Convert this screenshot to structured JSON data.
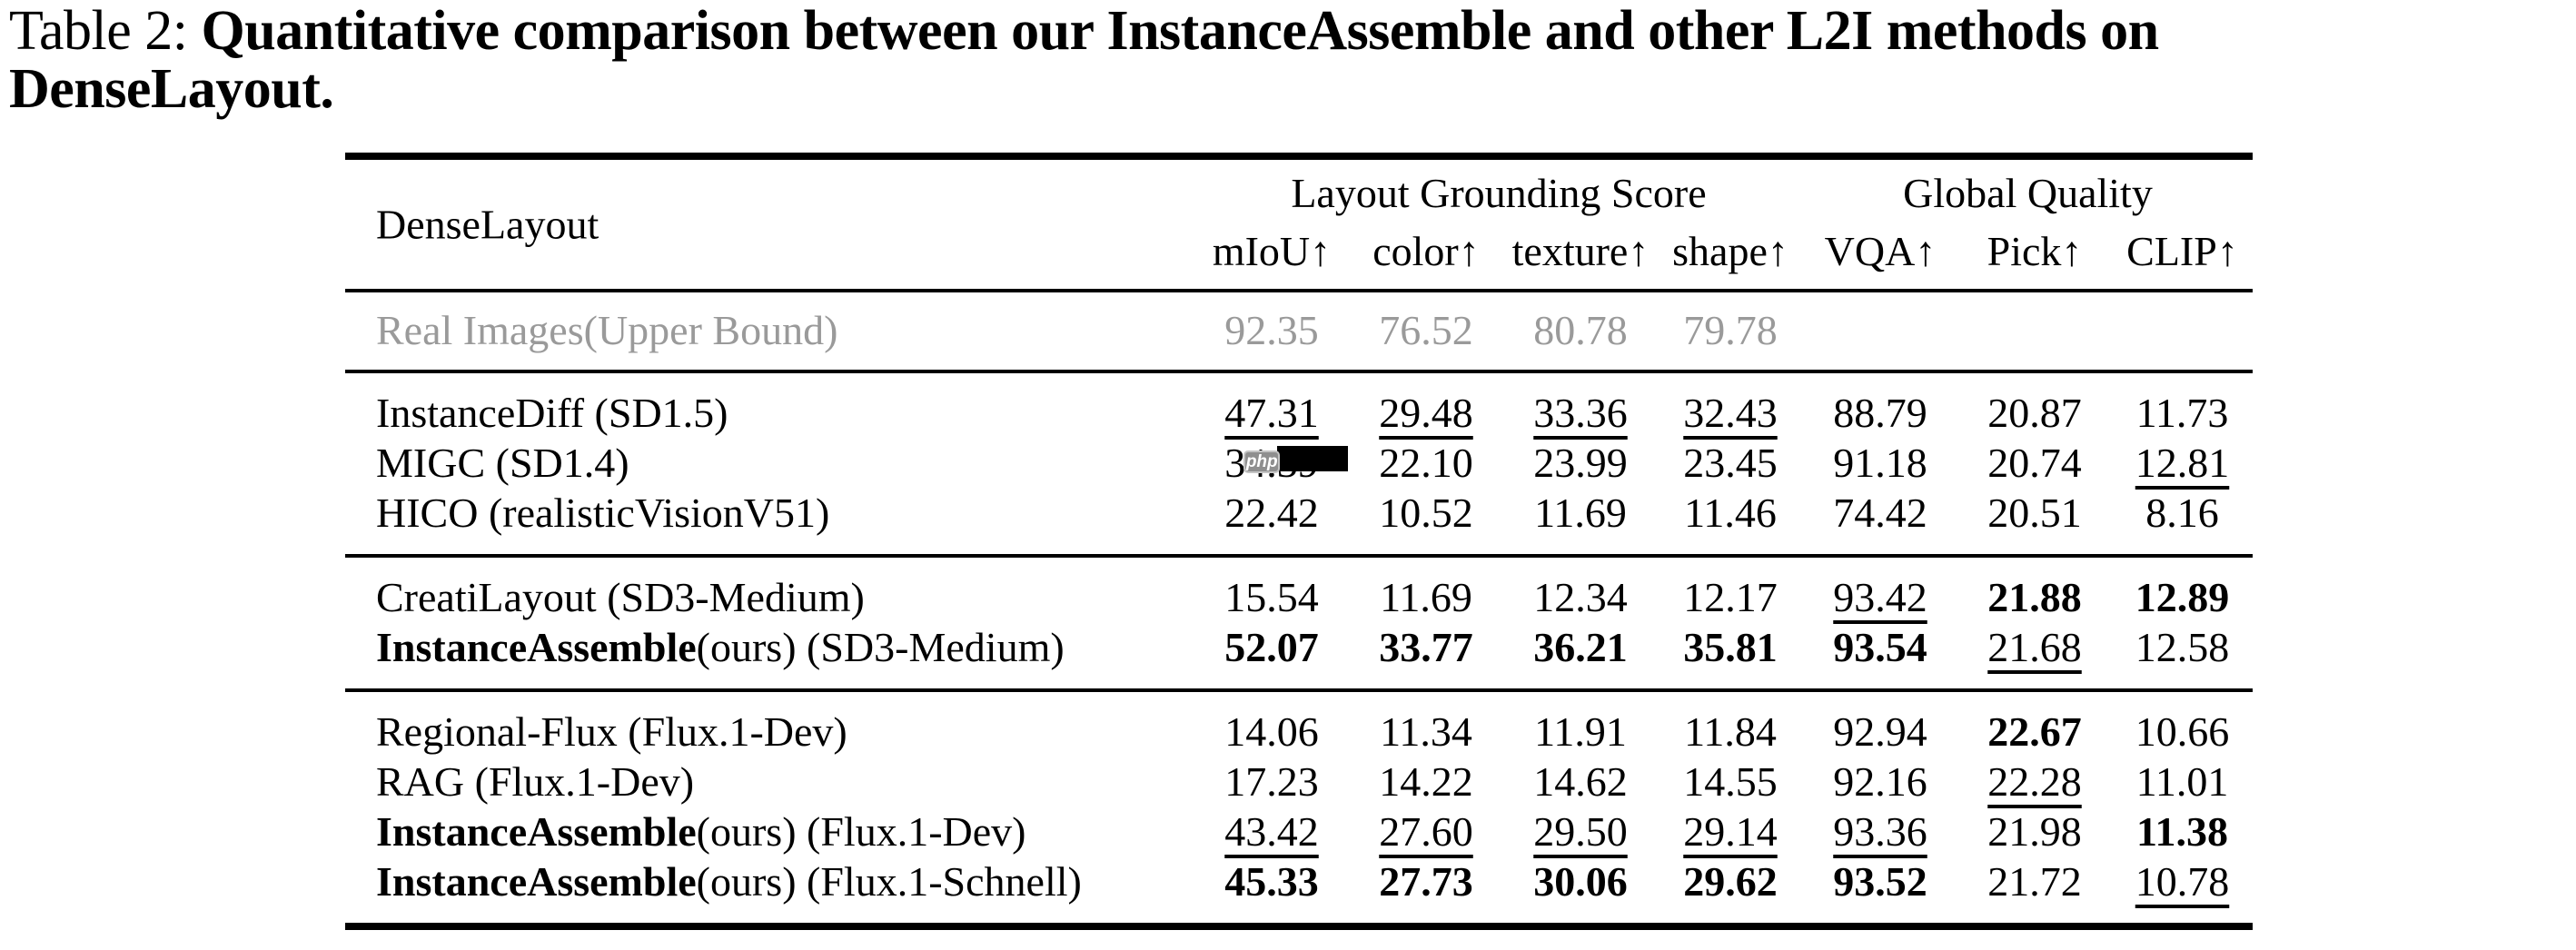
{
  "caption": {
    "label": "Table 2:",
    "title_line1": "Quantitative comparison between our InstanceAssemble and other L2I methods on",
    "title_line2": "DenseLayout."
  },
  "watermark": {
    "badge_text": "php"
  },
  "colors": {
    "text": "#000000",
    "muted_row": "#9a9a9a",
    "watermark_badge": "#8f8f8f"
  },
  "table": {
    "corner_label": "DenseLayout",
    "column_groups": [
      {
        "label": "Layout Grounding Score",
        "span": 4
      },
      {
        "label": "Global Quality",
        "span": 3
      }
    ],
    "columns": [
      "mIoU↑",
      "color↑",
      "texture↑",
      "shape↑",
      "VQA↑",
      "Pick↑",
      "CLIP↑"
    ],
    "row_groups": [
      {
        "rows": [
          {
            "method": {
              "bold": "",
              "text": "Real Images(Upper Bound)"
            },
            "gray": true,
            "cells": [
              {
                "v": "92.35"
              },
              {
                "v": "76.52"
              },
              {
                "v": "80.78"
              },
              {
                "v": "79.78"
              },
              {
                "v": ""
              },
              {
                "v": ""
              },
              {
                "v": ""
              }
            ]
          }
        ]
      },
      {
        "rows": [
          {
            "method": {
              "bold": "",
              "text": "InstanceDiff (SD1.5)"
            },
            "cells": [
              {
                "v": "47.31",
                "s": "underline"
              },
              {
                "v": "29.48",
                "s": "underline"
              },
              {
                "v": "33.36",
                "s": "underline"
              },
              {
                "v": "32.43",
                "s": "underline"
              },
              {
                "v": "88.79"
              },
              {
                "v": "20.87"
              },
              {
                "v": "11.73"
              }
            ]
          },
          {
            "method": {
              "bold": "",
              "text": "MIGC (SD1.4)"
            },
            "cells": [
              {
                "v": "34.39",
                "glitch": true
              },
              {
                "v": "22.10"
              },
              {
                "v": "23.99"
              },
              {
                "v": "23.45"
              },
              {
                "v": "91.18"
              },
              {
                "v": "20.74"
              },
              {
                "v": "12.81",
                "s": "underline"
              }
            ]
          },
          {
            "method": {
              "bold": "",
              "text": "HICO (realisticVisionV51)"
            },
            "cells": [
              {
                "v": "22.42"
              },
              {
                "v": "10.52"
              },
              {
                "v": "11.69"
              },
              {
                "v": "11.46"
              },
              {
                "v": "74.42"
              },
              {
                "v": "20.51"
              },
              {
                "v": "8.16"
              }
            ]
          }
        ]
      },
      {
        "rows": [
          {
            "method": {
              "bold": "",
              "text": "CreatiLayout (SD3-Medium)"
            },
            "cells": [
              {
                "v": "15.54"
              },
              {
                "v": "11.69"
              },
              {
                "v": "12.34"
              },
              {
                "v": "12.17"
              },
              {
                "v": "93.42",
                "s": "underline"
              },
              {
                "v": "21.88",
                "s": "bold"
              },
              {
                "v": "12.89",
                "s": "bold"
              }
            ]
          },
          {
            "method": {
              "bold": "InstanceAssemble",
              "text": "(ours) (SD3-Medium)"
            },
            "cells": [
              {
                "v": "52.07",
                "s": "bold"
              },
              {
                "v": "33.77",
                "s": "bold"
              },
              {
                "v": "36.21",
                "s": "bold"
              },
              {
                "v": "35.81",
                "s": "bold"
              },
              {
                "v": "93.54",
                "s": "bold"
              },
              {
                "v": "21.68",
                "s": "underline"
              },
              {
                "v": "12.58"
              }
            ]
          }
        ]
      },
      {
        "rows": [
          {
            "method": {
              "bold": "",
              "text": "Regional-Flux (Flux.1-Dev)"
            },
            "cells": [
              {
                "v": "14.06"
              },
              {
                "v": "11.34"
              },
              {
                "v": "11.91"
              },
              {
                "v": "11.84"
              },
              {
                "v": "92.94"
              },
              {
                "v": "22.67",
                "s": "bold"
              },
              {
                "v": "10.66"
              }
            ]
          },
          {
            "method": {
              "bold": "",
              "text": "RAG (Flux.1-Dev)"
            },
            "cells": [
              {
                "v": "17.23"
              },
              {
                "v": "14.22"
              },
              {
                "v": "14.62"
              },
              {
                "v": "14.55"
              },
              {
                "v": "92.16"
              },
              {
                "v": "22.28",
                "s": "underline"
              },
              {
                "v": "11.01"
              }
            ]
          },
          {
            "method": {
              "bold": "InstanceAssemble",
              "text": "(ours) (Flux.1-Dev)"
            },
            "cells": [
              {
                "v": "43.42",
                "s": "underline"
              },
              {
                "v": "27.60",
                "s": "underline"
              },
              {
                "v": "29.50",
                "s": "underline"
              },
              {
                "v": "29.14",
                "s": "underline"
              },
              {
                "v": "93.36",
                "s": "underline"
              },
              {
                "v": "21.98"
              },
              {
                "v": "11.38",
                "s": "bold"
              }
            ]
          },
          {
            "method": {
              "bold": "InstanceAssemble",
              "text": "(ours) (Flux.1-Schnell)"
            },
            "cells": [
              {
                "v": "45.33",
                "s": "bold"
              },
              {
                "v": "27.73",
                "s": "bold"
              },
              {
                "v": "30.06",
                "s": "bold"
              },
              {
                "v": "29.62",
                "s": "bold"
              },
              {
                "v": "93.52",
                "s": "bold"
              },
              {
                "v": "21.72"
              },
              {
                "v": "10.78",
                "s": "underline"
              }
            ]
          }
        ]
      }
    ]
  }
}
